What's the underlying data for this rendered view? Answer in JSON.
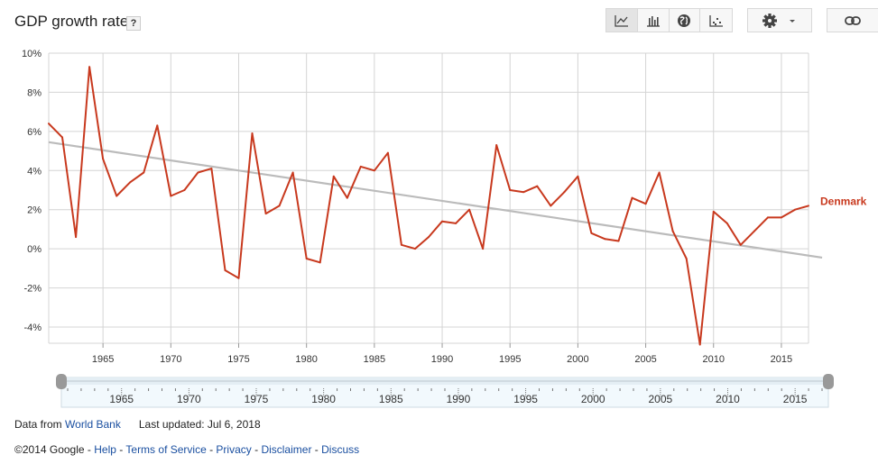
{
  "header": {
    "title": "GDP growth rate",
    "help_label": "?"
  },
  "toolbar": {
    "icons": [
      "line-chart-icon",
      "bar-chart-icon",
      "globe-icon",
      "scatter-icon"
    ],
    "active": "line-chart-icon",
    "settings_icon": "gear-icon",
    "link_icon": "link-icon"
  },
  "chart_data": {
    "type": "line",
    "y_tick_labels": [
      "10%",
      "8%",
      "6%",
      "4%",
      "2%",
      "0%",
      "-2%",
      "-4%"
    ],
    "x_tick_labels": [
      "1965",
      "1970",
      "1975",
      "1980",
      "1985",
      "1990",
      "1995",
      "2000",
      "2005",
      "2010",
      "2015"
    ],
    "ylim": [
      -5,
      10
    ],
    "xlim": [
      1961,
      2017
    ],
    "grid": true,
    "series": [
      {
        "name": "Denmark",
        "color": "#c8391e",
        "x": [
          1961,
          1962,
          1963,
          1964,
          1965,
          1966,
          1967,
          1968,
          1969,
          1970,
          1971,
          1972,
          1973,
          1974,
          1975,
          1976,
          1977,
          1978,
          1979,
          1980,
          1981,
          1982,
          1983,
          1984,
          1985,
          1986,
          1987,
          1988,
          1989,
          1990,
          1991,
          1992,
          1993,
          1994,
          1995,
          1996,
          1997,
          1998,
          1999,
          2000,
          2001,
          2002,
          2003,
          2004,
          2005,
          2006,
          2007,
          2008,
          2009,
          2010,
          2011,
          2012,
          2013,
          2014,
          2015,
          2016,
          2017
        ],
        "values": [
          6.4,
          5.7,
          0.6,
          9.3,
          4.6,
          2.7,
          3.4,
          3.9,
          6.3,
          2.7,
          3.0,
          3.9,
          4.1,
          -1.1,
          -1.5,
          5.9,
          1.8,
          2.2,
          3.9,
          -0.5,
          -0.7,
          3.7,
          2.6,
          4.2,
          4.0,
          4.9,
          0.2,
          0.0,
          0.6,
          1.4,
          1.3,
          2.0,
          0.0,
          5.3,
          3.0,
          2.9,
          3.2,
          2.2,
          2.9,
          3.7,
          0.8,
          0.5,
          0.4,
          2.6,
          2.3,
          3.9,
          0.9,
          -0.5,
          -4.9,
          1.9,
          1.3,
          0.2,
          0.9,
          1.6,
          1.6,
          2.0,
          2.2
        ]
      }
    ],
    "trendline": {
      "color": "#bbbbbb",
      "x": [
        1961,
        2018
      ],
      "values": [
        5.45,
        -0.45
      ]
    },
    "range_selector": {
      "tick_labels": [
        "1965",
        "1970",
        "1975",
        "1980",
        "1985",
        "1990",
        "1995",
        "2000",
        "2005",
        "2010",
        "2015"
      ],
      "handle_color": "#999999"
    }
  },
  "footer": {
    "data_from": "Data from",
    "source_link": "World Bank",
    "last_updated": "Last updated: Jul 6, 2018",
    "copyright": "©2014 Google",
    "sep": " - ",
    "links": [
      "Help",
      "Terms of Service",
      "Privacy",
      "Disclaimer",
      "Discuss"
    ]
  }
}
